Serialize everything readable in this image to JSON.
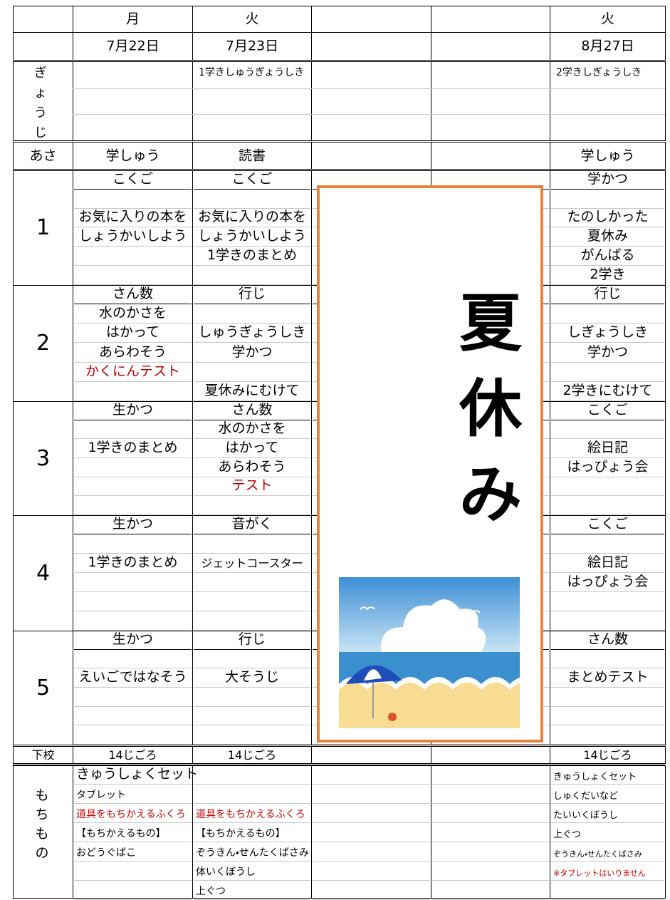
{
  "header": {
    "days": [
      "月",
      "火",
      null,
      null,
      "火"
    ],
    "dates": [
      "7月22日",
      "7月23日",
      null,
      null,
      "8月27日"
    ]
  },
  "gyouji": {
    "label": "ぎょうじ",
    "cells": [
      null,
      "1学きしゅうぎょうしき",
      null,
      null,
      "2学きしぎょうしき"
    ]
  },
  "asa": {
    "label": "あさ",
    "cells": [
      "学しゅう",
      "読書",
      null,
      null,
      "学しゅう"
    ]
  },
  "periods": [
    {
      "label": "1",
      "cols": [
        [
          "こくご",
          null,
          "お気に入りの本を",
          "しょうかいしよう",
          null,
          null
        ],
        [
          "こくご",
          null,
          "お気に入りの本を",
          "しょうかいしよう",
          "1学きのまとめ",
          null
        ],
        null,
        null,
        [
          "学かつ",
          null,
          "たのしかった",
          "夏休み",
          "がんばる",
          "2学き"
        ]
      ]
    },
    {
      "label": "2",
      "cols": [
        [
          "さん数",
          "水のかさを",
          "はかって",
          "あらわそう",
          {
            "text": "かくにんテスト",
            "color": "#c00000"
          },
          null
        ],
        [
          "行じ",
          null,
          "しゅうぎょうしき",
          "学かつ",
          null,
          "夏休みにむけて"
        ],
        null,
        null,
        [
          "行じ",
          null,
          "しぎょうしき",
          "学かつ",
          null,
          "2学きにむけて"
        ]
      ]
    },
    {
      "label": "3",
      "cols": [
        [
          "生かつ",
          null,
          "1学きのまとめ",
          null,
          null,
          null
        ],
        [
          "さん数",
          "水のかさを",
          "はかって",
          "あらわそう",
          {
            "text": "テスト",
            "color": "#c00000"
          },
          null
        ],
        null,
        null,
        [
          "こくご",
          null,
          "絵日記",
          "はっぴょう会",
          null,
          null
        ]
      ]
    },
    {
      "label": "4",
      "cols": [
        [
          "生かつ",
          null,
          "1学きのまとめ",
          null,
          null,
          null
        ],
        [
          "音がく",
          null,
          "ジェットコースター",
          null,
          null,
          null
        ],
        null,
        null,
        [
          "こくご",
          null,
          "絵日記",
          "はっぴょう会",
          null,
          null
        ]
      ]
    },
    {
      "label": "5",
      "cols": [
        [
          "生かつ",
          null,
          "えいごではなそう",
          null,
          null,
          null
        ],
        [
          "行じ",
          null,
          "大そうじ",
          null,
          null,
          null
        ],
        null,
        null,
        [
          "さん数",
          null,
          "まとめテスト",
          null,
          null,
          null
        ]
      ]
    }
  ],
  "gekou": {
    "label": "下校",
    "cells": [
      "14じごろ",
      "14じごろ",
      null,
      null,
      "14じごろ"
    ]
  },
  "mochimono": {
    "label": "もちもの",
    "cols": [
      [
        "きゅうしょくセット",
        "タブレット",
        {
          "text": "道具をもちかえるふくろ",
          "color": "#c00000"
        },
        "【もちかえるもの】",
        "おどうぐばこ"
      ],
      [
        null,
        null,
        {
          "text": "道具をもちかえるふくろ",
          "color": "#c00000"
        },
        "【もちかえるもの】",
        "ぞうきん・せんたくばさみ",
        "体いくぼうし",
        "上ぐつ"
      ],
      null,
      null,
      [
        "きゅうしょくセット",
        "しゅくだいなど",
        "たいいくぼうし",
        "上ぐつ",
        "ぞうきん・せんたくばさみ",
        {
          "text": "※タブレットはいりません",
          "color": "#c00000"
        }
      ]
    ]
  },
  "overlay": {
    "title": "夏休み"
  }
}
